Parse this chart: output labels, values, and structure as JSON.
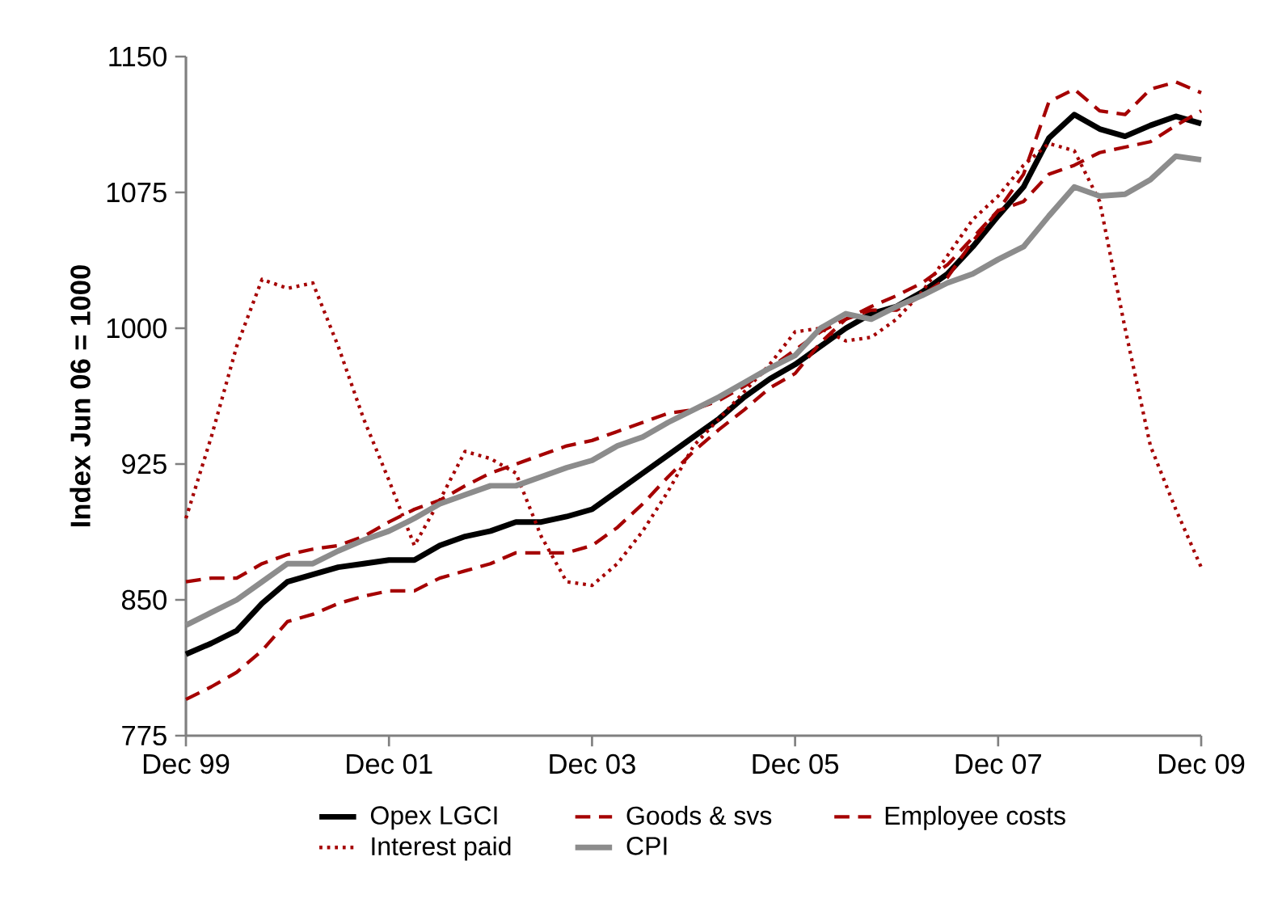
{
  "chart_data": {
    "type": "line",
    "ylabel": "Index Jun 06 = 1000",
    "x": [
      "1999-12",
      "2000-03",
      "2000-06",
      "2000-09",
      "2000-12",
      "2001-03",
      "2001-06",
      "2001-09",
      "2001-12",
      "2002-03",
      "2002-06",
      "2002-09",
      "2002-12",
      "2003-03",
      "2003-06",
      "2003-09",
      "2003-12",
      "2004-03",
      "2004-06",
      "2004-09",
      "2004-12",
      "2005-03",
      "2005-06",
      "2005-09",
      "2005-12",
      "2006-03",
      "2006-06",
      "2006-09",
      "2006-12",
      "2007-03",
      "2007-06",
      "2007-09",
      "2007-12",
      "2008-03",
      "2008-06",
      "2008-09",
      "2008-12",
      "2009-03",
      "2009-06",
      "2009-09",
      "2009-12"
    ],
    "series": [
      {
        "name": "Opex LGCI",
        "color": "#000000",
        "line_style": "solid",
        "values": [
          820,
          826,
          833,
          848,
          860,
          864,
          868,
          870,
          872,
          872,
          880,
          885,
          888,
          893,
          893,
          896,
          900,
          910,
          920,
          930,
          940,
          950,
          962,
          972,
          980,
          990,
          1000,
          1008,
          1012,
          1020,
          1030,
          1045,
          1062,
          1078,
          1105,
          1118,
          1110,
          1106,
          1112,
          1117,
          1113
        ]
      },
      {
        "name": "Goods & svs",
        "color": "#a50000",
        "line_style": "dashed",
        "values": [
          795,
          802,
          810,
          822,
          838,
          842,
          848,
          852,
          855,
          855,
          862,
          866,
          870,
          876,
          876,
          876,
          880,
          890,
          903,
          918,
          932,
          944,
          955,
          967,
          975,
          992,
          1005,
          1010,
          1010,
          1018,
          1028,
          1048,
          1065,
          1085,
          1125,
          1132,
          1120,
          1118,
          1132,
          1136,
          1130
        ]
      },
      {
        "name": "Employee costs",
        "color": "#a50000",
        "line_style": "dashed",
        "values": [
          860,
          862,
          862,
          870,
          875,
          878,
          880,
          885,
          893,
          900,
          905,
          913,
          920,
          925,
          930,
          935,
          938,
          943,
          948,
          953,
          955,
          960,
          968,
          978,
          988,
          998,
          1005,
          1012,
          1018,
          1025,
          1035,
          1050,
          1065,
          1070,
          1085,
          1090,
          1097,
          1100,
          1103,
          1112,
          1120
        ]
      },
      {
        "name": "Interest paid",
        "color": "#a50000",
        "line_style": "dotted",
        "values": [
          895,
          940,
          990,
          1027,
          1022,
          1025,
          990,
          950,
          916,
          880,
          905,
          932,
          928,
          920,
          885,
          860,
          858,
          870,
          888,
          910,
          935,
          950,
          965,
          980,
          998,
          1000,
          993,
          995,
          1005,
          1020,
          1040,
          1060,
          1073,
          1090,
          1102,
          1098,
          1070,
          1000,
          935,
          900,
          868
        ]
      },
      {
        "name": "CPI",
        "color": "#8c8c8c",
        "line_style": "solid",
        "values": [
          836,
          843,
          850,
          860,
          870,
          870,
          877,
          883,
          888,
          895,
          903,
          908,
          913,
          913,
          918,
          923,
          927,
          935,
          940,
          948,
          955,
          962,
          970,
          978,
          985,
          1000,
          1008,
          1005,
          1012,
          1018,
          1025,
          1030,
          1038,
          1045,
          1062,
          1078,
          1073,
          1074,
          1082,
          1095,
          1093
        ]
      }
    ],
    "xlim": [
      "1999-12",
      "2009-12"
    ],
    "xticks": [
      {
        "value": "1999-12",
        "label": "Dec 99"
      },
      {
        "value": "2001-12",
        "label": "Dec 01"
      },
      {
        "value": "2003-12",
        "label": "Dec 03"
      },
      {
        "value": "2005-12",
        "label": "Dec 05"
      },
      {
        "value": "2007-12",
        "label": "Dec 07"
      },
      {
        "value": "2009-12",
        "label": "Dec 09"
      }
    ],
    "ylim": [
      775,
      1150
    ],
    "yticks": [
      775,
      850,
      925,
      1000,
      1075,
      1150
    ],
    "grid": false,
    "legend": "bottom",
    "marker": "none"
  }
}
